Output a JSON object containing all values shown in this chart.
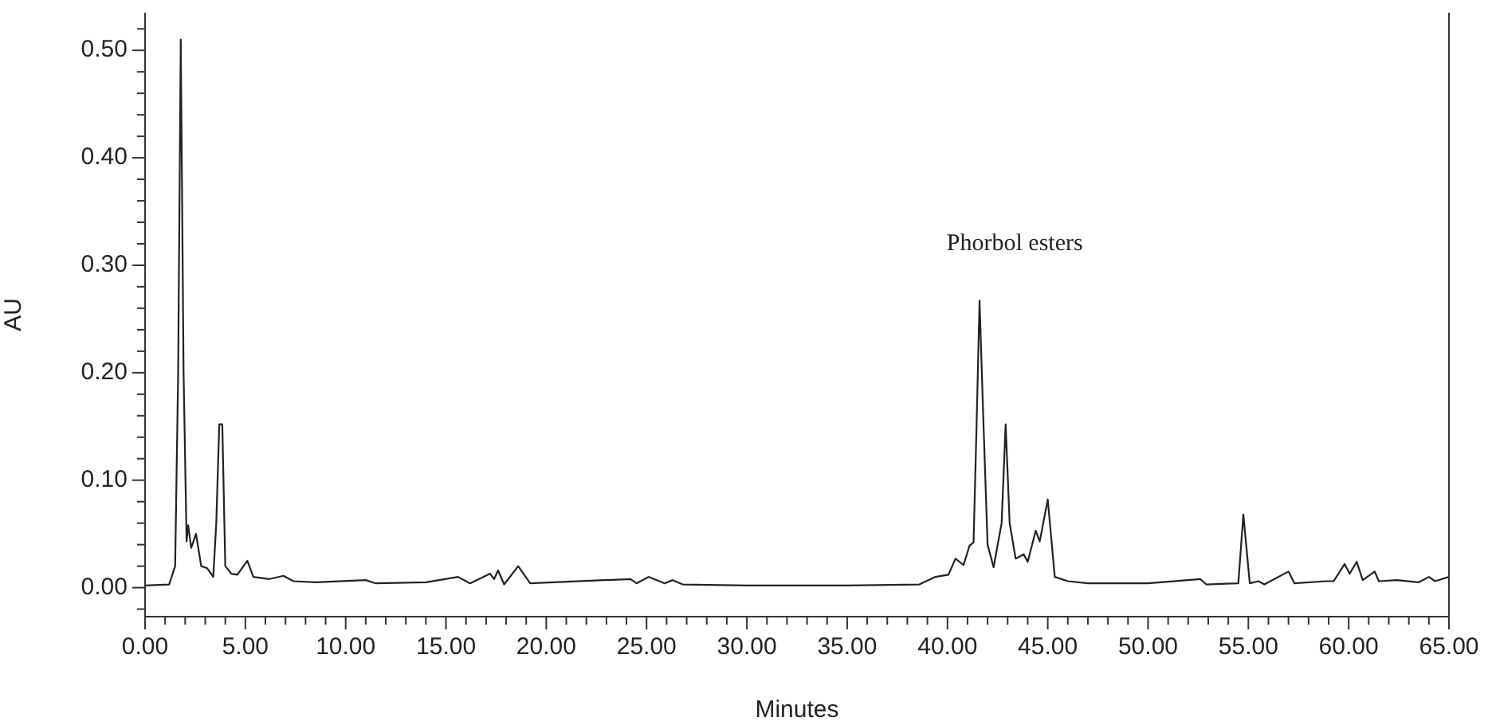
{
  "chart_data": {
    "type": "line",
    "xlabel": "Minutes",
    "ylabel": "AU",
    "annotations": [
      "Phorbol esters"
    ],
    "x": [
      0,
      1.2,
      1.5,
      1.65,
      1.78,
      1.92,
      2.07,
      2.15,
      2.3,
      2.54,
      2.8,
      3.1,
      3.4,
      3.55,
      3.7,
      3.85,
      4.0,
      4.3,
      4.6,
      5.1,
      5.4,
      6.2,
      6.9,
      7.4,
      8.5,
      11.0,
      11.5,
      14,
      15.6,
      16.2,
      17.2,
      17.4,
      17.6,
      17.9,
      18.6,
      19.2,
      24.2,
      24.5,
      25.1,
      25.9,
      26.3,
      26.8,
      30,
      35,
      38.6,
      39.4,
      40.05,
      40.4,
      40.8,
      41.1,
      41.3,
      41.45,
      41.6,
      41.8,
      42.0,
      42.3,
      42.7,
      42.9,
      43.1,
      43.4,
      43.8,
      44.0,
      44.4,
      44.6,
      45.0,
      45.35,
      46.0,
      47,
      50,
      52.6,
      52.9,
      54.5,
      54.75,
      55.07,
      55.5,
      55.8,
      57.0,
      57.3,
      58.85,
      59.25,
      59.8,
      60.05,
      60.4,
      60.7,
      61.3,
      61.5,
      62.4,
      63.5,
      64.0,
      64.3,
      65
    ],
    "series": [
      {
        "color": "#222222",
        "values": [
          0.002,
          0.003,
          0.02,
          0.2,
          0.51,
          0.2,
          0.043,
          0.058,
          0.037,
          0.05,
          0.02,
          0.018,
          0.01,
          0.06,
          0.152,
          0.152,
          0.02,
          0.013,
          0.012,
          0.025,
          0.01,
          0.008,
          0.011,
          0.006,
          0.005,
          0.007,
          0.004,
          0.005,
          0.01,
          0.004,
          0.013,
          0.008,
          0.016,
          0.003,
          0.02,
          0.004,
          0.008,
          0.004,
          0.01,
          0.004,
          0.007,
          0.003,
          0.002,
          0.002,
          0.003,
          0.01,
          0.012,
          0.027,
          0.021,
          0.039,
          0.042,
          0.15,
          0.267,
          0.15,
          0.04,
          0.019,
          0.06,
          0.152,
          0.06,
          0.027,
          0.031,
          0.024,
          0.053,
          0.043,
          0.082,
          0.01,
          0.006,
          0.004,
          0.004,
          0.008,
          0.003,
          0.004,
          0.068,
          0.004,
          0.006,
          0.003,
          0.015,
          0.004,
          0.006,
          0.006,
          0.022,
          0.013,
          0.024,
          0.007,
          0.015,
          0.006,
          0.007,
          0.005,
          0.01,
          0.006,
          0.01
        ]
      }
    ],
    "xlim": [
      0,
      65
    ],
    "ylim": [
      -0.027,
      0.535
    ],
    "xticks": [
      {
        "value": 0,
        "label": "0.00"
      },
      {
        "value": 1,
        "label": null
      },
      {
        "value": 2,
        "label": null
      },
      {
        "value": 3,
        "label": null
      },
      {
        "value": 4,
        "label": null
      },
      {
        "value": 5,
        "label": "5.00"
      },
      {
        "value": 6,
        "label": null
      },
      {
        "value": 7,
        "label": null
      },
      {
        "value": 8,
        "label": null
      },
      {
        "value": 9,
        "label": null
      },
      {
        "value": 10,
        "label": "10.00"
      },
      {
        "value": 11,
        "label": null
      },
      {
        "value": 12,
        "label": null
      },
      {
        "value": 13,
        "label": null
      },
      {
        "value": 14,
        "label": null
      },
      {
        "value": 15,
        "label": "15.00"
      },
      {
        "value": 16,
        "label": null
      },
      {
        "value": 17,
        "label": null
      },
      {
        "value": 18,
        "label": null
      },
      {
        "value": 19,
        "label": null
      },
      {
        "value": 20,
        "label": "20.00"
      },
      {
        "value": 21,
        "label": null
      },
      {
        "value": 22,
        "label": null
      },
      {
        "value": 23,
        "label": null
      },
      {
        "value": 24,
        "label": null
      },
      {
        "value": 25,
        "label": "25.00"
      },
      {
        "value": 26,
        "label": null
      },
      {
        "value": 27,
        "label": null
      },
      {
        "value": 28,
        "label": null
      },
      {
        "value": 29,
        "label": null
      },
      {
        "value": 30,
        "label": "30.00"
      },
      {
        "value": 31,
        "label": null
      },
      {
        "value": 32,
        "label": null
      },
      {
        "value": 33,
        "label": null
      },
      {
        "value": 34,
        "label": null
      },
      {
        "value": 35,
        "label": "35.00"
      },
      {
        "value": 36,
        "label": null
      },
      {
        "value": 37,
        "label": null
      },
      {
        "value": 38,
        "label": null
      },
      {
        "value": 39,
        "label": null
      },
      {
        "value": 40,
        "label": "40.00"
      },
      {
        "value": 41,
        "label": null
      },
      {
        "value": 42,
        "label": null
      },
      {
        "value": 43,
        "label": null
      },
      {
        "value": 44,
        "label": null
      },
      {
        "value": 45,
        "label": "45.00"
      },
      {
        "value": 46,
        "label": null
      },
      {
        "value": 47,
        "label": null
      },
      {
        "value": 48,
        "label": null
      },
      {
        "value": 49,
        "label": null
      },
      {
        "value": 50,
        "label": "50.00"
      },
      {
        "value": 51,
        "label": null
      },
      {
        "value": 52,
        "label": null
      },
      {
        "value": 53,
        "label": null
      },
      {
        "value": 54,
        "label": null
      },
      {
        "value": 55,
        "label": "55.00"
      },
      {
        "value": 56,
        "label": null
      },
      {
        "value": 57,
        "label": null
      },
      {
        "value": 58,
        "label": null
      },
      {
        "value": 59,
        "label": null
      },
      {
        "value": 60,
        "label": "60.00"
      },
      {
        "value": 61,
        "label": null
      },
      {
        "value": 62,
        "label": null
      },
      {
        "value": 63,
        "label": null
      },
      {
        "value": 64,
        "label": null
      },
      {
        "value": 65,
        "label": "65.00"
      }
    ],
    "yticks": [
      {
        "value": -0.02,
        "label": null
      },
      {
        "value": 0,
        "label": "0.00"
      },
      {
        "value": 0.02,
        "label": null
      },
      {
        "value": 0.04,
        "label": null
      },
      {
        "value": 0.06,
        "label": null
      },
      {
        "value": 0.08,
        "label": null
      },
      {
        "value": 0.1,
        "label": "0.10"
      },
      {
        "value": 0.12,
        "label": null
      },
      {
        "value": 0.14,
        "label": null
      },
      {
        "value": 0.16,
        "label": null
      },
      {
        "value": 0.18,
        "label": null
      },
      {
        "value": 0.2,
        "label": "0.20"
      },
      {
        "value": 0.22,
        "label": null
      },
      {
        "value": 0.24,
        "label": null
      },
      {
        "value": 0.26,
        "label": null
      },
      {
        "value": 0.28,
        "label": null
      },
      {
        "value": 0.3,
        "label": "0.30"
      },
      {
        "value": 0.32,
        "label": null
      },
      {
        "value": 0.34,
        "label": null
      },
      {
        "value": 0.36,
        "label": null
      },
      {
        "value": 0.38,
        "label": null
      },
      {
        "value": 0.4,
        "label": "0.40"
      },
      {
        "value": 0.42,
        "label": null
      },
      {
        "value": 0.44,
        "label": null
      },
      {
        "value": 0.46,
        "label": null
      },
      {
        "value": 0.48,
        "label": null
      },
      {
        "value": 0.5,
        "label": "0.50"
      },
      {
        "value": 0.52,
        "label": null
      }
    ],
    "grid": false,
    "legend": false,
    "marker": "none",
    "line_style": "solid"
  }
}
